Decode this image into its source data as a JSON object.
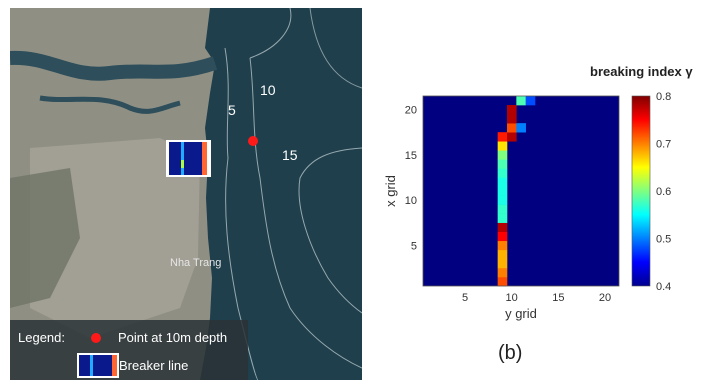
{
  "panel_a": {
    "depth_labels": [
      "5",
      "10",
      "15"
    ],
    "place_label": "Nha Trang",
    "legend": {
      "title": "Legend:",
      "point_label": "Point at 10m depth",
      "line_label": "Breaker line"
    },
    "colors": {
      "point": "#ff1a1a",
      "land": "#8f8f84",
      "sea": "#1f3f4c"
    }
  },
  "panel_b": {
    "caption": "(b)",
    "chart_data": {
      "type": "heatmap",
      "title": "",
      "xlabel": "y grid",
      "ylabel": "x grid",
      "x_ticks": [
        5,
        10,
        15,
        20
      ],
      "y_ticks": [
        5,
        10,
        15,
        20
      ],
      "xlim": [
        0.5,
        21.5
      ],
      "ylim": [
        0.5,
        21.5
      ],
      "colorbar": {
        "label": "breaking index γ",
        "min": 0.4,
        "max": 0.8,
        "ticks": [
          0.4,
          0.5,
          0.6,
          0.7,
          0.8
        ],
        "colormap": "jet"
      },
      "background_value": 0.4,
      "cells": [
        {
          "x": 1,
          "y": 9,
          "v": 0.72
        },
        {
          "x": 2,
          "y": 9,
          "v": 0.7
        },
        {
          "x": 3,
          "y": 9,
          "v": 0.68
        },
        {
          "x": 4,
          "y": 9,
          "v": 0.68
        },
        {
          "x": 5,
          "y": 9,
          "v": 0.7
        },
        {
          "x": 6,
          "y": 9,
          "v": 0.75
        },
        {
          "x": 7,
          "y": 9,
          "v": 0.78
        },
        {
          "x": 8,
          "y": 9,
          "v": 0.57
        },
        {
          "x": 9,
          "y": 9,
          "v": 0.57
        },
        {
          "x": 10,
          "y": 9,
          "v": 0.56
        },
        {
          "x": 11,
          "y": 9,
          "v": 0.56
        },
        {
          "x": 12,
          "y": 9,
          "v": 0.56
        },
        {
          "x": 13,
          "y": 9,
          "v": 0.57
        },
        {
          "x": 14,
          "y": 9,
          "v": 0.58
        },
        {
          "x": 15,
          "y": 9,
          "v": 0.6
        },
        {
          "x": 16,
          "y": 9,
          "v": 0.66
        },
        {
          "x": 17,
          "y": 9,
          "v": 0.74
        },
        {
          "x": 17,
          "y": 10,
          "v": 0.78
        },
        {
          "x": 18,
          "y": 10,
          "v": 0.72
        },
        {
          "x": 18,
          "y": 11,
          "v": 0.5
        },
        {
          "x": 19,
          "y": 10,
          "v": 0.78
        },
        {
          "x": 20,
          "y": 10,
          "v": 0.78
        },
        {
          "x": 21,
          "y": 11,
          "v": 0.58
        },
        {
          "x": 21,
          "y": 12,
          "v": 0.48
        }
      ]
    }
  }
}
